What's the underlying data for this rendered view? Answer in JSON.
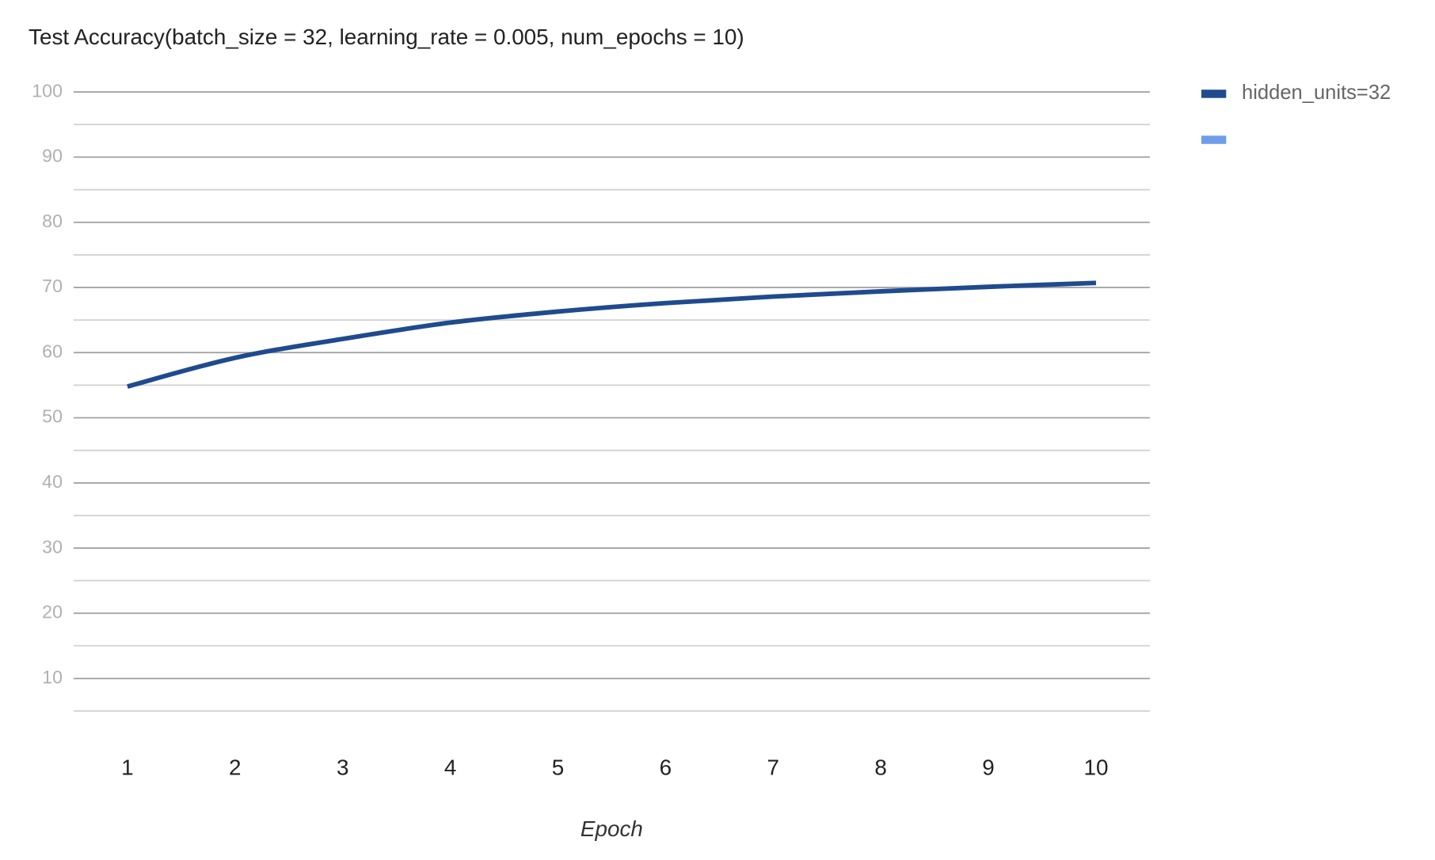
{
  "chart_data": {
    "type": "line",
    "title": "Test Accuracy(batch_size = 32, learning_rate = 0.005, num_epochs = 10)",
    "x_label": "Epoch",
    "x": [
      1,
      2,
      3,
      4,
      5,
      6,
      7,
      8,
      9,
      10
    ],
    "xlim": [
      0.5,
      10.5
    ],
    "xticks": [
      1,
      2,
      3,
      4,
      5,
      6,
      7,
      8,
      9,
      10
    ],
    "series": [
      {
        "name": "hidden_units=32",
        "color": "#1f4b8e",
        "values": [
          54.8,
          59.2,
          62.1,
          64.6,
          66.3,
          67.6,
          68.6,
          69.4,
          70.1,
          70.7
        ]
      },
      {
        "name": null,
        "color": "#6d9eeb",
        "values": [
          null,
          null,
          null,
          null,
          null,
          null,
          null,
          null,
          null,
          null
        ]
      }
    ],
    "ylim": [
      5,
      100
    ],
    "yticks": [
      10,
      20,
      30,
      40,
      50,
      60,
      70,
      80,
      90,
      100
    ],
    "minor_yticks": [
      5,
      15,
      25,
      35,
      45,
      55,
      65,
      75,
      85,
      95
    ],
    "grid": true,
    "legend": "right"
  }
}
